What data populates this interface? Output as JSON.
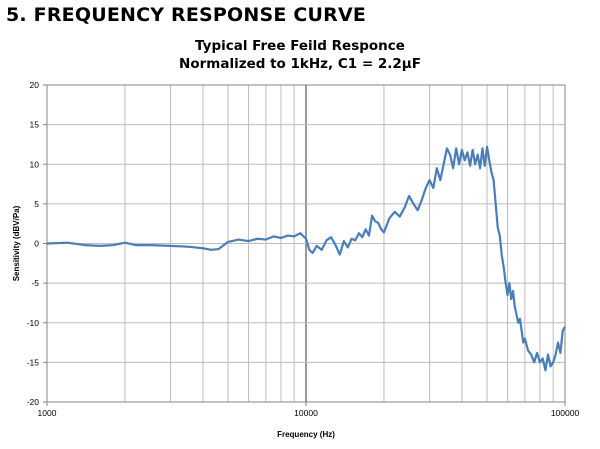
{
  "heading": "5. FREQUENCY RESPONSE CURVE",
  "chart_data": {
    "type": "line",
    "title": "Typical Free Feild Responce",
    "subtitle": "Normalized to 1kHz, C1 = 2.2µF",
    "xlabel": "Frequency (Hz)",
    "ylabel": "Sensitivity (dBV/Pa)",
    "xscale": "log",
    "xlim": [
      1000,
      100000
    ],
    "ylim": [
      -20,
      20
    ],
    "grid": true,
    "x_tick_labels": [
      "1000",
      "10000",
      "100000"
    ],
    "y_tick_labels": [
      "20",
      "15",
      "10",
      "5",
      "0",
      "-5",
      "-10",
      "-15",
      "-20"
    ],
    "line_color": "#4a7ebb",
    "series": [
      {
        "x": [
          1000,
          1200,
          1400,
          1600,
          1800,
          2000,
          2200,
          2500,
          3000,
          3500,
          4000,
          4300,
          4600,
          5000,
          5500,
          6000,
          6500,
          7000,
          7500,
          8000,
          8500,
          9000,
          9500,
          10000,
          10300,
          10600,
          11000,
          11500,
          12000,
          12500,
          13000,
          13500,
          14000,
          14500,
          15000,
          15500,
          16000,
          16500,
          17000,
          17500,
          18000,
          18500,
          19000,
          19500,
          20000,
          21000,
          22000,
          23000,
          24000,
          25000,
          26000,
          27000,
          28000,
          29000,
          30000,
          31000,
          32000,
          33000,
          34000,
          35000,
          36000,
          37000,
          38000,
          39000,
          40000,
          41000,
          42000,
          43000,
          44000,
          45000,
          46000,
          47000,
          48000,
          49000,
          50000,
          51000,
          52000,
          53000,
          54000,
          55000,
          56000,
          57000,
          58000,
          59000,
          60000,
          61000,
          62000,
          63000,
          64000,
          65000,
          66000,
          67000,
          68000,
          69000,
          70000,
          72000,
          74000,
          76000,
          78000,
          80000,
          82000,
          84000,
          86000,
          88000,
          90000,
          92000,
          94000,
          96000,
          98000,
          100000
        ],
        "y": [
          0.0,
          0.1,
          -0.2,
          -0.3,
          -0.2,
          0.1,
          -0.2,
          -0.2,
          -0.3,
          -0.4,
          -0.6,
          -0.8,
          -0.7,
          0.2,
          0.5,
          0.3,
          0.6,
          0.5,
          0.9,
          0.7,
          1.0,
          0.9,
          1.3,
          0.6,
          -0.8,
          -1.2,
          -0.3,
          -0.8,
          0.4,
          0.8,
          -0.2,
          -1.4,
          0.3,
          -0.5,
          0.6,
          0.4,
          1.3,
          0.8,
          1.8,
          1.0,
          3.5,
          2.8,
          2.6,
          1.8,
          1.4,
          3.2,
          4.0,
          3.4,
          4.5,
          6.0,
          5.0,
          4.2,
          5.5,
          7.0,
          8.0,
          7.0,
          9.5,
          8.0,
          10.0,
          12.0,
          11.2,
          9.5,
          12.0,
          10.0,
          11.8,
          10.5,
          11.5,
          9.8,
          11.8,
          10.0,
          11.2,
          9.5,
          12.0,
          9.8,
          12.2,
          10.5,
          9.0,
          8.0,
          5.0,
          2.0,
          1.0,
          -1.5,
          -3.0,
          -5.0,
          -6.5,
          -5.0,
          -7.0,
          -6.0,
          -8.0,
          -9.0,
          -10.0,
          -9.5,
          -11.0,
          -12.5,
          -12.0,
          -13.5,
          -14.0,
          -15.0,
          -13.8,
          -15.0,
          -14.5,
          -16.0,
          -14.0,
          -15.5,
          -15.0,
          -14.0,
          -12.5,
          -13.8,
          -11.0,
          -10.5
        ]
      }
    ]
  }
}
